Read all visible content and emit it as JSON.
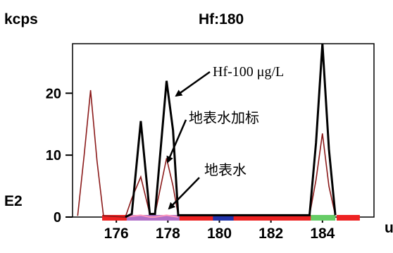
{
  "chart_data": {
    "type": "line",
    "title": "Hf:180",
    "y_unit_label": "kcps",
    "y_exponent_label": "E2",
    "x_unit_label": "u",
    "xlim": [
      174.3,
      186.0
    ],
    "ylim": [
      0,
      28
    ],
    "x_ticks": [
      176,
      178,
      180,
      182,
      184
    ],
    "y_ticks": [
      0,
      10,
      20
    ],
    "series": [
      {
        "name": "Hf-100 μg/L",
        "color": "#000000",
        "x": [
          176.35,
          176.6,
          176.95,
          177.3,
          177.5,
          177.95,
          178.2,
          178.4,
          183.5,
          183.75,
          184.0,
          184.25,
          184.5
        ],
        "y": [
          0,
          0.5,
          15.5,
          0.5,
          0.5,
          22,
          14,
          0.3,
          0.3,
          12,
          28,
          11,
          0.3
        ]
      },
      {
        "name": "地表水加标",
        "color": "#8b1a1a",
        "x": [
          174.5,
          174.75,
          175.0,
          175.25,
          175.5,
          176.35,
          176.6,
          176.95,
          177.3,
          177.5,
          177.95,
          178.2,
          178.4,
          183.5,
          183.75,
          184.0,
          184.25,
          184.5
        ],
        "y": [
          0.2,
          10,
          20.5,
          9,
          0.2,
          0,
          3,
          6.5,
          0.5,
          0.5,
          9.5,
          5,
          0.3,
          0.3,
          6,
          13.5,
          5,
          0.3
        ]
      },
      {
        "name": "地表水",
        "color": "#ff99bb",
        "x": [
          176.35,
          176.95,
          177.3,
          177.5,
          177.95,
          178.4
        ],
        "y": [
          0,
          0.3,
          0,
          0,
          0.3,
          0
        ]
      }
    ],
    "annotations": [
      {
        "text": "Hf-100 μg/L",
        "points_to": "Hf-100 μg/L"
      },
      {
        "text": "地表水加标",
        "points_to": "地表水加标"
      },
      {
        "text": "地表水",
        "points_to": "地表水"
      }
    ],
    "baseline_bands": [
      {
        "from": 175.45,
        "to": 183.55,
        "color": "#ee2222"
      },
      {
        "from": 184.55,
        "to": 185.45,
        "color": "#ee2222"
      },
      {
        "from": 176.4,
        "to": 178.45,
        "color": "#b070c8"
      },
      {
        "from": 179.75,
        "to": 180.55,
        "color": "#2233aa"
      },
      {
        "from": 183.55,
        "to": 184.5,
        "color": "#66cc66"
      }
    ],
    "grid": false,
    "legend": "none"
  }
}
